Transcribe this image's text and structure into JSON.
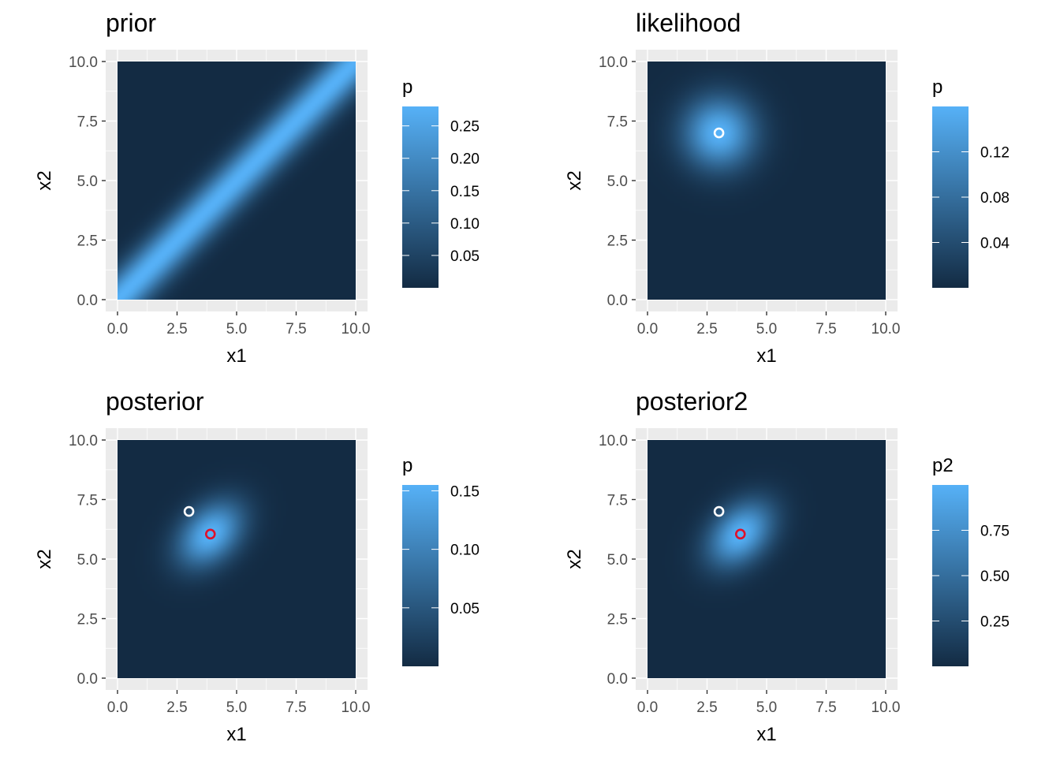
{
  "chart_data": [
    {
      "type": "heatmap",
      "title": "prior",
      "xlabel": "x1",
      "ylabel": "x2",
      "xlim": [
        0,
        10
      ],
      "ylim": [
        0,
        10
      ],
      "x_ticks": [
        "0.0",
        "2.5",
        "5.0",
        "7.5",
        "10.0"
      ],
      "y_ticks": [
        "0.0",
        "2.5",
        "5.0",
        "7.5",
        "10.0"
      ],
      "field": "prior: bivariate density concentrated along the diagonal x2 = x1 (strongly correlated x1 and x2)",
      "grid": true,
      "legend": {
        "title": "p",
        "range": [
          0.0,
          0.28
        ],
        "ticks": [
          "0.05",
          "0.10",
          "0.15",
          "0.20",
          "0.25"
        ],
        "tick_values": [
          0.05,
          0.1,
          0.15,
          0.2,
          0.25
        ],
        "position": "right"
      },
      "colors": {
        "low": "#132B43",
        "high": "#56B1F7"
      },
      "points": []
    },
    {
      "type": "heatmap",
      "title": "likelihood",
      "xlabel": "x1",
      "ylabel": "x2",
      "xlim": [
        0,
        10
      ],
      "ylim": [
        0,
        10
      ],
      "x_ticks": [
        "0.0",
        "2.5",
        "5.0",
        "7.5",
        "10.0"
      ],
      "y_ticks": [
        "0.0",
        "2.5",
        "5.0",
        "7.5",
        "10.0"
      ],
      "field": "likelihood: isotropic Gaussian peak centred at (3, 7)",
      "grid": true,
      "legend": {
        "title": "p",
        "range": [
          0.0,
          0.16
        ],
        "ticks": [
          "0.04",
          "0.08",
          "0.12"
        ],
        "tick_values": [
          0.04,
          0.08,
          0.12
        ],
        "position": "right"
      },
      "colors": {
        "low": "#132B43",
        "high": "#56B1F7"
      },
      "points": [
        {
          "x": 3,
          "y": 7,
          "color": "#ffffff"
        }
      ]
    },
    {
      "type": "heatmap",
      "title": "posterior",
      "xlabel": "x1",
      "ylabel": "x2",
      "xlim": [
        0,
        10
      ],
      "ylim": [
        0,
        10
      ],
      "x_ticks": [
        "0.0",
        "2.5",
        "5.0",
        "7.5",
        "10.0"
      ],
      "y_ticks": [
        "0.0",
        "2.5",
        "5.0",
        "7.5",
        "10.0"
      ],
      "field": "posterior: Gaussian peak centred at about (3.9, 6.1), elongated along the diagonal",
      "grid": true,
      "legend": {
        "title": "p",
        "range": [
          0.0,
          0.155
        ],
        "ticks": [
          "0.05",
          "0.10",
          "0.15"
        ],
        "tick_values": [
          0.05,
          0.1,
          0.15
        ],
        "position": "right"
      },
      "colors": {
        "low": "#132B43",
        "high": "#56B1F7"
      },
      "points": [
        {
          "x": 3,
          "y": 7,
          "color": "#ffffff"
        },
        {
          "x": 3.9,
          "y": 6.05,
          "color": "#e0102a"
        }
      ]
    },
    {
      "type": "heatmap",
      "title": "posterior2",
      "xlabel": "x1",
      "ylabel": "x2",
      "xlim": [
        0,
        10
      ],
      "ylim": [
        0,
        10
      ],
      "x_ticks": [
        "0.0",
        "2.5",
        "5.0",
        "7.5",
        "10.0"
      ],
      "y_ticks": [
        "0.0",
        "2.5",
        "5.0",
        "7.5",
        "10.0"
      ],
      "field": "posterior2: same shape as posterior, rescaled to a maximum of 1",
      "grid": true,
      "legend": {
        "title": "p2",
        "range": [
          0.0,
          1.0
        ],
        "ticks": [
          "0.25",
          "0.50",
          "0.75"
        ],
        "tick_values": [
          0.25,
          0.5,
          0.75
        ],
        "position": "right"
      },
      "colors": {
        "low": "#132B43",
        "high": "#56B1F7"
      },
      "points": [
        {
          "x": 3,
          "y": 7,
          "color": "#ffffff"
        },
        {
          "x": 3.9,
          "y": 6.05,
          "color": "#e0102a"
        }
      ]
    }
  ]
}
